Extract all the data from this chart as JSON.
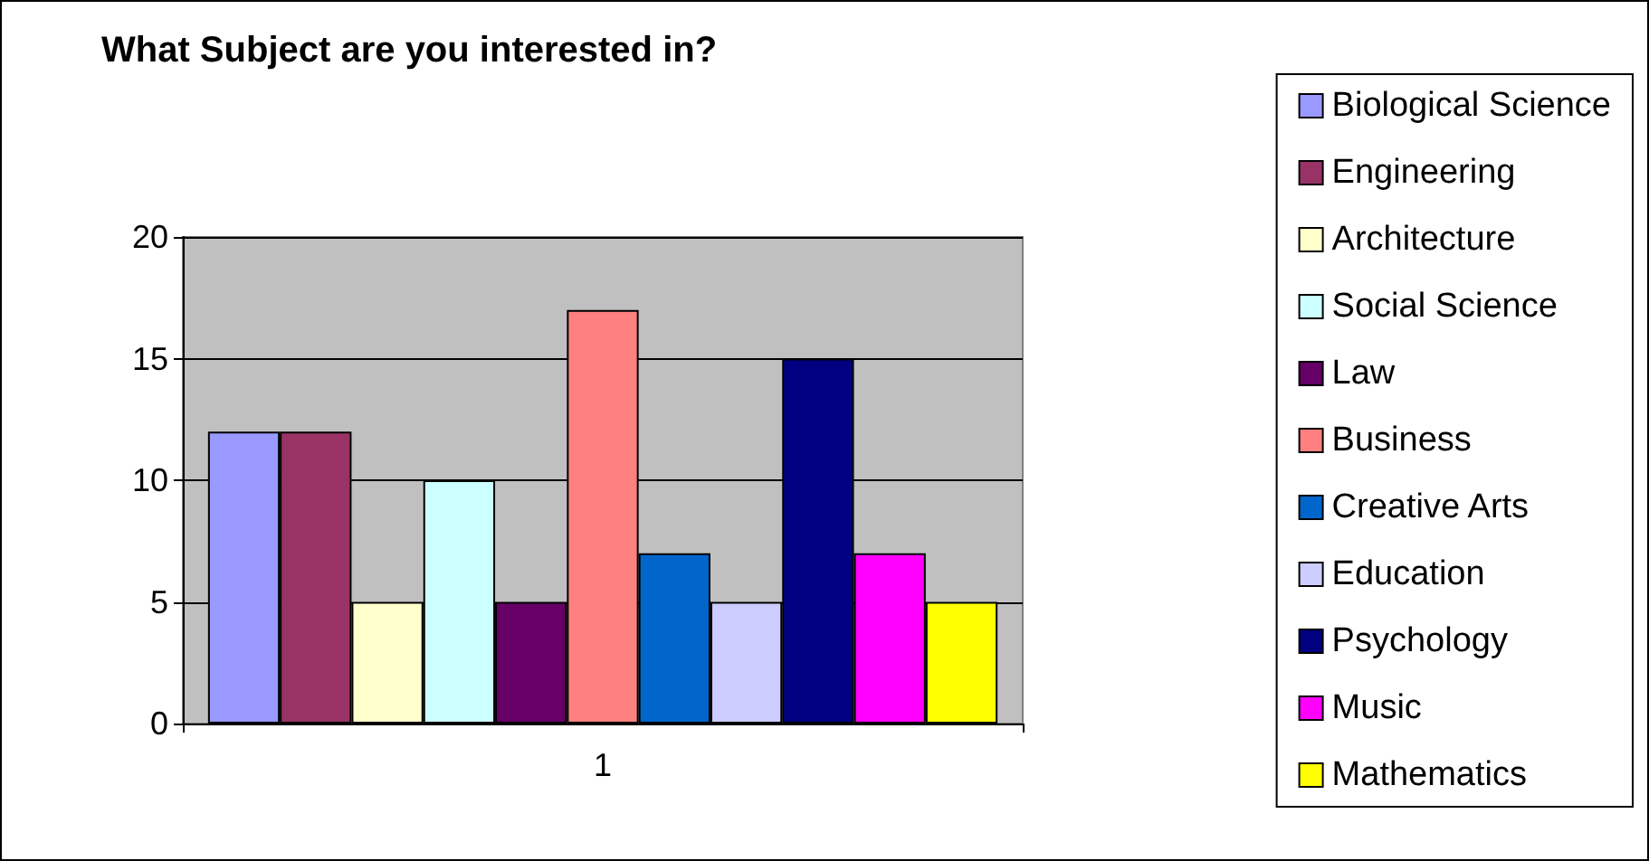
{
  "chart_data": {
    "type": "bar",
    "title": "What Subject are you interested in?",
    "categories": [
      "1"
    ],
    "series": [
      {
        "name": "Biological Science",
        "color": "#9999ff",
        "values": [
          12
        ]
      },
      {
        "name": "Engineering",
        "color": "#993366",
        "values": [
          12
        ]
      },
      {
        "name": "Architecture",
        "color": "#ffffcc",
        "values": [
          5
        ]
      },
      {
        "name": "Social Science",
        "color": "#ccffff",
        "values": [
          10
        ]
      },
      {
        "name": "Law",
        "color": "#660066",
        "values": [
          5
        ]
      },
      {
        "name": "Business",
        "color": "#ff8080",
        "values": [
          17
        ]
      },
      {
        "name": "Creative Arts",
        "color": "#0066cc",
        "values": [
          7
        ]
      },
      {
        "name": "Education",
        "color": "#ccccff",
        "values": [
          5
        ]
      },
      {
        "name": "Psychology",
        "color": "#000080",
        "values": [
          15
        ]
      },
      {
        "name": "Music",
        "color": "#ff00ff",
        "values": [
          7
        ]
      },
      {
        "name": "Mathematics",
        "color": "#ffff00",
        "values": [
          5
        ]
      }
    ],
    "ylim": [
      0,
      20
    ],
    "yticks": [
      0,
      5,
      10,
      15,
      20
    ],
    "grid": "y",
    "legend": "right"
  }
}
